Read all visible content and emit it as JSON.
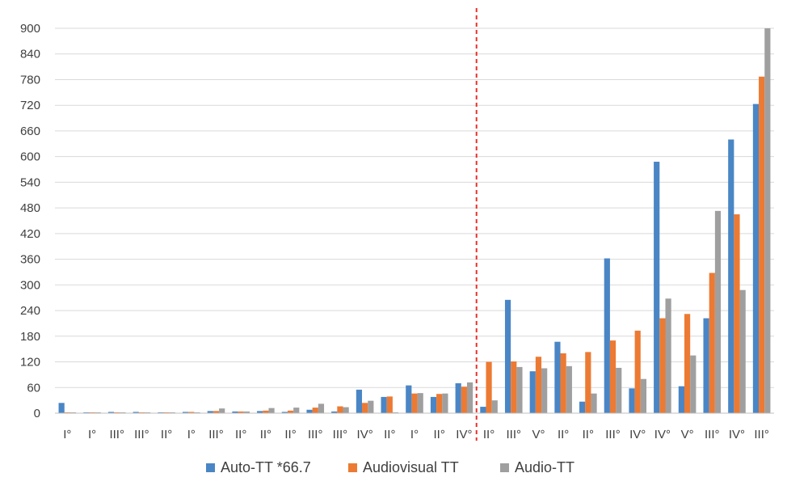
{
  "chart_data": {
    "type": "bar",
    "categories": [
      "I°",
      "I°",
      "III°",
      "III°",
      "II°",
      "I°",
      "III°",
      "II°",
      "II°",
      "II°",
      "III°",
      "III°",
      "IV°",
      "II°",
      "I°",
      "II°",
      "IV°",
      "II°",
      "III°",
      "V°",
      "II°",
      "II°",
      "III°",
      "IV°",
      "IV°",
      "V°",
      "III°",
      "IV°",
      "III°"
    ],
    "series": [
      {
        "name": "Auto-TT *66.7",
        "color": "#4a86c5",
        "values": [
          24,
          2,
          3,
          3,
          2,
          3,
          5,
          4,
          5,
          3,
          8,
          4,
          55,
          38,
          65,
          38,
          70,
          15,
          265,
          98,
          167,
          27,
          362,
          58,
          588,
          63,
          222,
          640,
          723
        ]
      },
      {
        "name": "Audiovisual TT",
        "color": "#ec7a33",
        "values": [
          2,
          2,
          2,
          2,
          2,
          3,
          5,
          4,
          6,
          6,
          13,
          16,
          24,
          39,
          46,
          45,
          62,
          120,
          121,
          132,
          140,
          143,
          170,
          193,
          222,
          232,
          328,
          465,
          787
        ]
      },
      {
        "name": "Audio-TT",
        "color": "#9f9f9f",
        "values": [
          2,
          2,
          2,
          2,
          2,
          2,
          11,
          4,
          12,
          13,
          22,
          14,
          29,
          2,
          47,
          46,
          72,
          30,
          108,
          105,
          110,
          46,
          106,
          80,
          268,
          135,
          473,
          288,
          900
        ]
      }
    ],
    "ylim": [
      0,
      900
    ],
    "yticks": [
      "0",
      "60",
      "120",
      "180",
      "240",
      "300",
      "360",
      "420",
      "480",
      "540",
      "600",
      "660",
      "720",
      "780",
      "840",
      "900"
    ],
    "divider_after_index": 16,
    "grid": true,
    "legend_position": "bottom"
  }
}
